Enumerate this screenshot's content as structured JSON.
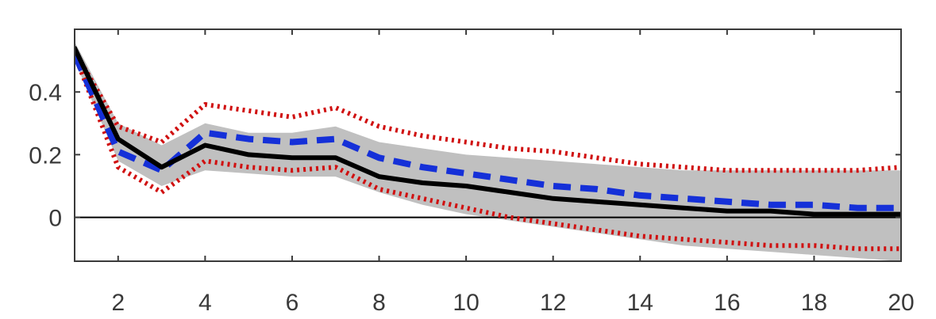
{
  "chart_data": {
    "type": "line",
    "title": "",
    "xlabel": "",
    "ylabel": "",
    "xlim": [
      1,
      20
    ],
    "ylim": [
      -0.14,
      0.6
    ],
    "x_ticks": [
      2,
      4,
      6,
      8,
      10,
      12,
      14,
      16,
      18,
      20
    ],
    "y_ticks": [
      0,
      0.2,
      0.4
    ],
    "x_tick_labels": [
      "2",
      "4",
      "6",
      "8",
      "10",
      "12",
      "14",
      "16",
      "18",
      "20"
    ],
    "y_tick_labels": [
      "0",
      "0.2",
      "0.4"
    ],
    "grid": false,
    "zero_line": true,
    "x": [
      1,
      2,
      3,
      4,
      5,
      6,
      7,
      8,
      9,
      10,
      11,
      12,
      13,
      14,
      15,
      16,
      17,
      18,
      19,
      20
    ],
    "band": {
      "color": "#c0c0c0",
      "lower": [
        0.5,
        0.18,
        0.1,
        0.15,
        0.14,
        0.13,
        0.13,
        0.08,
        0.04,
        0.01,
        -0.01,
        -0.03,
        -0.05,
        -0.07,
        -0.09,
        -0.1,
        -0.11,
        -0.12,
        -0.13,
        -0.14
      ],
      "upper": [
        0.56,
        0.3,
        0.23,
        0.3,
        0.27,
        0.27,
        0.29,
        0.24,
        0.22,
        0.2,
        0.19,
        0.18,
        0.17,
        0.16,
        0.15,
        0.15,
        0.15,
        0.15,
        0.15,
        0.15
      ]
    },
    "series": [
      {
        "style": "dotted",
        "color": "#d01010",
        "values": [
          0.53,
          0.29,
          0.24,
          0.36,
          0.34,
          0.32,
          0.35,
          0.29,
          0.26,
          0.24,
          0.22,
          0.21,
          0.19,
          0.17,
          0.16,
          0.15,
          0.15,
          0.15,
          0.15,
          0.16
        ]
      },
      {
        "style": "dotted",
        "color": "#d01010",
        "values": [
          0.52,
          0.16,
          0.08,
          0.18,
          0.16,
          0.15,
          0.16,
          0.09,
          0.06,
          0.03,
          0.0,
          -0.02,
          -0.04,
          -0.06,
          -0.07,
          -0.08,
          -0.09,
          -0.09,
          -0.1,
          -0.1
        ]
      },
      {
        "style": "dashed",
        "color": "#1530d8",
        "values": [
          0.52,
          0.21,
          0.15,
          0.27,
          0.25,
          0.24,
          0.25,
          0.19,
          0.16,
          0.14,
          0.12,
          0.1,
          0.09,
          0.07,
          0.06,
          0.05,
          0.04,
          0.04,
          0.03,
          0.03
        ]
      },
      {
        "style": "solid",
        "color": "#000000",
        "values": [
          0.54,
          0.25,
          0.16,
          0.23,
          0.2,
          0.19,
          0.19,
          0.13,
          0.11,
          0.1,
          0.08,
          0.06,
          0.05,
          0.04,
          0.03,
          0.02,
          0.02,
          0.01,
          0.01,
          0.01
        ]
      }
    ]
  }
}
